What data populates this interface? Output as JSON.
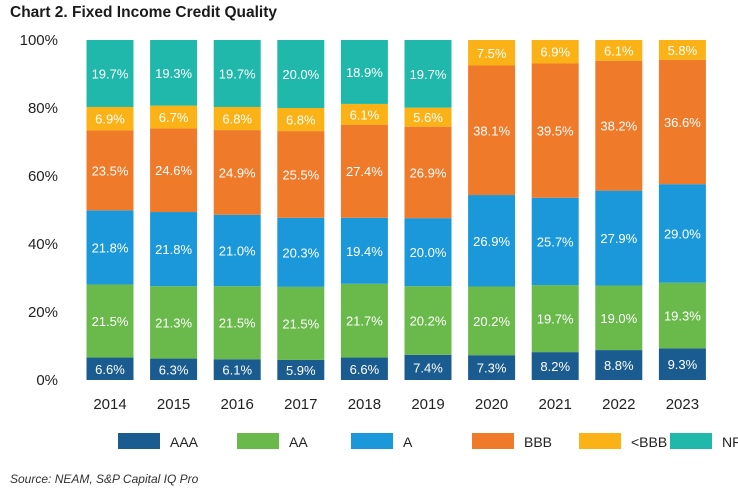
{
  "title": "Chart 2. Fixed Income Credit Quality",
  "source": "Source: NEAM, S&P Capital IQ Pro",
  "chart_data": {
    "type": "bar",
    "stacked": true,
    "title": "Chart 2. Fixed Income Credit Quality",
    "xlabel": "",
    "ylabel": "",
    "ylim": [
      0,
      100
    ],
    "yticks": [
      "0%",
      "20%",
      "40%",
      "60%",
      "80%",
      "100%"
    ],
    "legend_position": "bottom",
    "categories": [
      "2014",
      "2015",
      "2016",
      "2017",
      "2018",
      "2019",
      "2020",
      "2021",
      "2022",
      "2023"
    ],
    "series": [
      {
        "name": "AAA",
        "color": "#1a5c8f",
        "values": [
          6.6,
          6.3,
          6.1,
          5.9,
          6.6,
          7.4,
          7.3,
          8.2,
          8.8,
          9.3
        ],
        "labels": [
          "6.6%",
          "6.3%",
          "6.1%",
          "5.9%",
          "6.6%",
          "7.4%",
          "7.3%",
          "8.2%",
          "8.8%",
          "9.3%"
        ]
      },
      {
        "name": "AA",
        "color": "#6ab94b",
        "values": [
          21.5,
          21.3,
          21.5,
          21.5,
          21.7,
          20.2,
          20.2,
          19.7,
          19.0,
          19.3
        ],
        "labels": [
          "21.5%",
          "21.3%",
          "21.5%",
          "21.5%",
          "21.7%",
          "20.2%",
          "20.2%",
          "19.7%",
          "19.0%",
          "19.3%"
        ]
      },
      {
        "name": "A",
        "color": "#1b98d9",
        "values": [
          21.8,
          21.8,
          21.0,
          20.3,
          19.4,
          20.0,
          26.9,
          25.7,
          27.9,
          29.0
        ],
        "labels": [
          "21.8%",
          "21.8%",
          "21.0%",
          "20.3%",
          "19.4%",
          "20.0%",
          "26.9%",
          "25.7%",
          "27.9%",
          "29.0%"
        ]
      },
      {
        "name": "BBB",
        "color": "#ef7a2a",
        "values": [
          23.5,
          24.6,
          24.9,
          25.5,
          27.4,
          26.9,
          38.1,
          39.5,
          38.2,
          36.6
        ],
        "labels": [
          "23.5%",
          "24.6%",
          "24.9%",
          "25.5%",
          "27.4%",
          "26.9%",
          "38.1%",
          "39.5%",
          "38.2%",
          "36.6%"
        ]
      },
      {
        "name": "<BBB",
        "color": "#fbb216",
        "values": [
          6.9,
          6.7,
          6.8,
          6.8,
          6.1,
          5.6,
          7.5,
          6.9,
          6.1,
          5.8
        ],
        "labels": [
          "6.9%",
          "6.7%",
          "6.8%",
          "6.8%",
          "6.1%",
          "5.6%",
          "7.5%",
          "6.9%",
          "6.1%",
          "5.8%"
        ]
      },
      {
        "name": "NR",
        "color": "#20b8ab",
        "values": [
          19.7,
          19.3,
          19.7,
          20.0,
          18.9,
          19.7,
          0,
          0,
          0,
          0
        ],
        "labels": [
          "19.7%",
          "19.3%",
          "19.7%",
          "20.0%",
          "18.9%",
          "19.7%",
          "",
          "",
          "",
          ""
        ]
      }
    ]
  }
}
